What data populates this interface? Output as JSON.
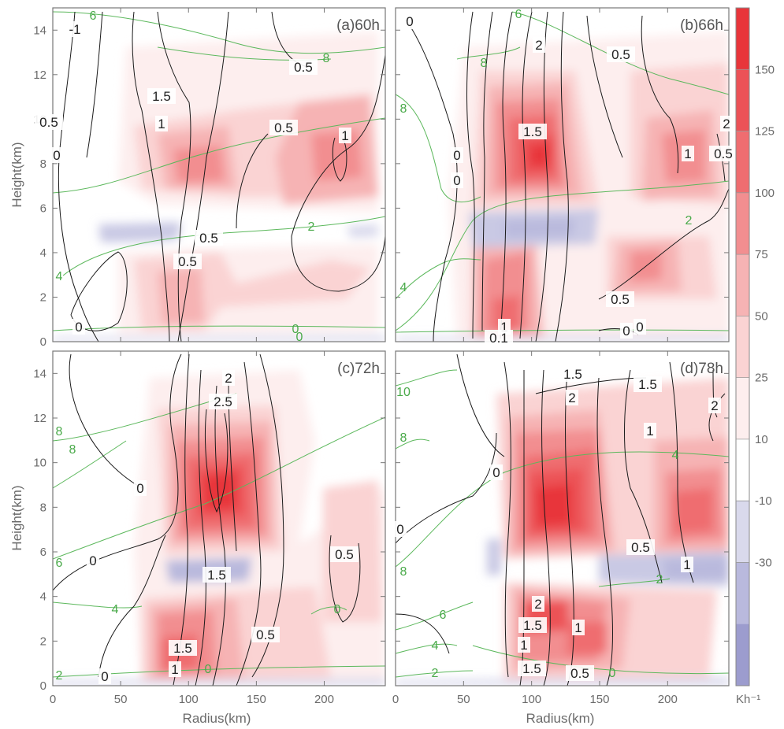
{
  "chart_data": {
    "type": "heatmap",
    "description_units": "Kh-1",
    "x_label": "Radius(km)",
    "y_label": "Height(km)",
    "xlim": [
      0,
      245
    ],
    "ylim": [
      0,
      15
    ],
    "x_ticks": [
      "0",
      "50",
      "100",
      "150",
      "200"
    ],
    "y_ticks": [
      "0",
      "2",
      "4",
      "6",
      "8",
      "10",
      "12",
      "14"
    ],
    "colorbar": {
      "unit_label": "Kh⁻¹",
      "levels": [
        "150",
        "125",
        "100",
        "75",
        "50",
        "25",
        "10",
        "-10",
        "-30"
      ],
      "colors": [
        "#e8353a",
        "#ec5257",
        "#ef6d70",
        "#f28e90",
        "#f6b3b4",
        "#fad3d3",
        "#fdeeee",
        "#ffffff",
        "#d9d9ec",
        "#b9b9dd",
        "#9c9cce"
      ]
    },
    "panels": [
      {
        "title": "(a)60h",
        "black_contour_labels": [
          "-1",
          "0.5",
          "1.5",
          "0.5",
          "1",
          "0",
          "0.5",
          "1",
          "0.5",
          "0.5",
          "0"
        ],
        "green_contour_labels": [
          "6",
          "8",
          "2",
          "4",
          "0"
        ],
        "heating_maxima": [
          {
            "r": 115,
            "z": 7.8,
            "v": 55
          },
          {
            "r": 205,
            "z": 8.2,
            "v": 65
          },
          {
            "r": 150,
            "z": 8.0,
            "v": 45
          }
        ],
        "cooling_minima": [
          {
            "r": 60,
            "z": 5.0,
            "v": -25
          },
          {
            "r": 185,
            "z": 5.0,
            "v": -15
          }
        ]
      },
      {
        "title": "(b)66h",
        "black_contour_labels": [
          "0",
          "2",
          "0.5",
          "1.5",
          "0",
          "0",
          "1",
          "0.5",
          "2",
          "0.5",
          "1",
          "0.1",
          "0",
          "0"
        ],
        "green_contour_labels": [
          "6",
          "8",
          "8",
          "2",
          "4",
          "0"
        ],
        "heating_maxima": [
          {
            "r": 100,
            "z": 8.0,
            "v": 130
          },
          {
            "r": 210,
            "z": 8.5,
            "v": 70
          },
          {
            "r": 85,
            "z": 1.5,
            "v": 90
          }
        ],
        "cooling_minima": [
          {
            "r": 85,
            "z": 5.0,
            "v": -30
          }
        ]
      },
      {
        "title": "(c)72h",
        "black_contour_labels": [
          "2",
          "2.5",
          "0",
          "0",
          "1.5",
          "0.5",
          "1.5",
          "0.5",
          "1",
          "0"
        ],
        "green_contour_labels": [
          "8",
          "8",
          "6",
          "4",
          "2",
          "0",
          "0"
        ],
        "heating_maxima": [
          {
            "r": 120,
            "z": 8.5,
            "v": 150
          },
          {
            "r": 100,
            "z": 2.5,
            "v": 80
          }
        ],
        "cooling_minima": [
          {
            "r": 110,
            "z": 5.0,
            "v": -30
          }
        ]
      },
      {
        "title": "(d)78h",
        "black_contour_labels": [
          "1.5",
          "1.5",
          "2",
          "2",
          "0",
          "1",
          "0",
          "1.5",
          "0.5",
          "1",
          "2",
          "1.5",
          "1",
          "1",
          "0.5"
        ],
        "green_contour_labels": [
          "10",
          "8",
          "4",
          "8",
          "2",
          "6",
          "4",
          "2",
          "0"
        ],
        "heating_maxima": [
          {
            "r": 110,
            "z": 7.5,
            "v": 140
          },
          {
            "r": 220,
            "z": 8.0,
            "v": 110
          },
          {
            "r": 100,
            "z": 3.0,
            "v": 110
          },
          {
            "r": 140,
            "z": 2.0,
            "v": 90
          }
        ],
        "cooling_minima": [
          {
            "r": 190,
            "z": 4.8,
            "v": -25
          },
          {
            "r": 65,
            "z": 5.5,
            "v": -20
          }
        ]
      }
    ]
  }
}
